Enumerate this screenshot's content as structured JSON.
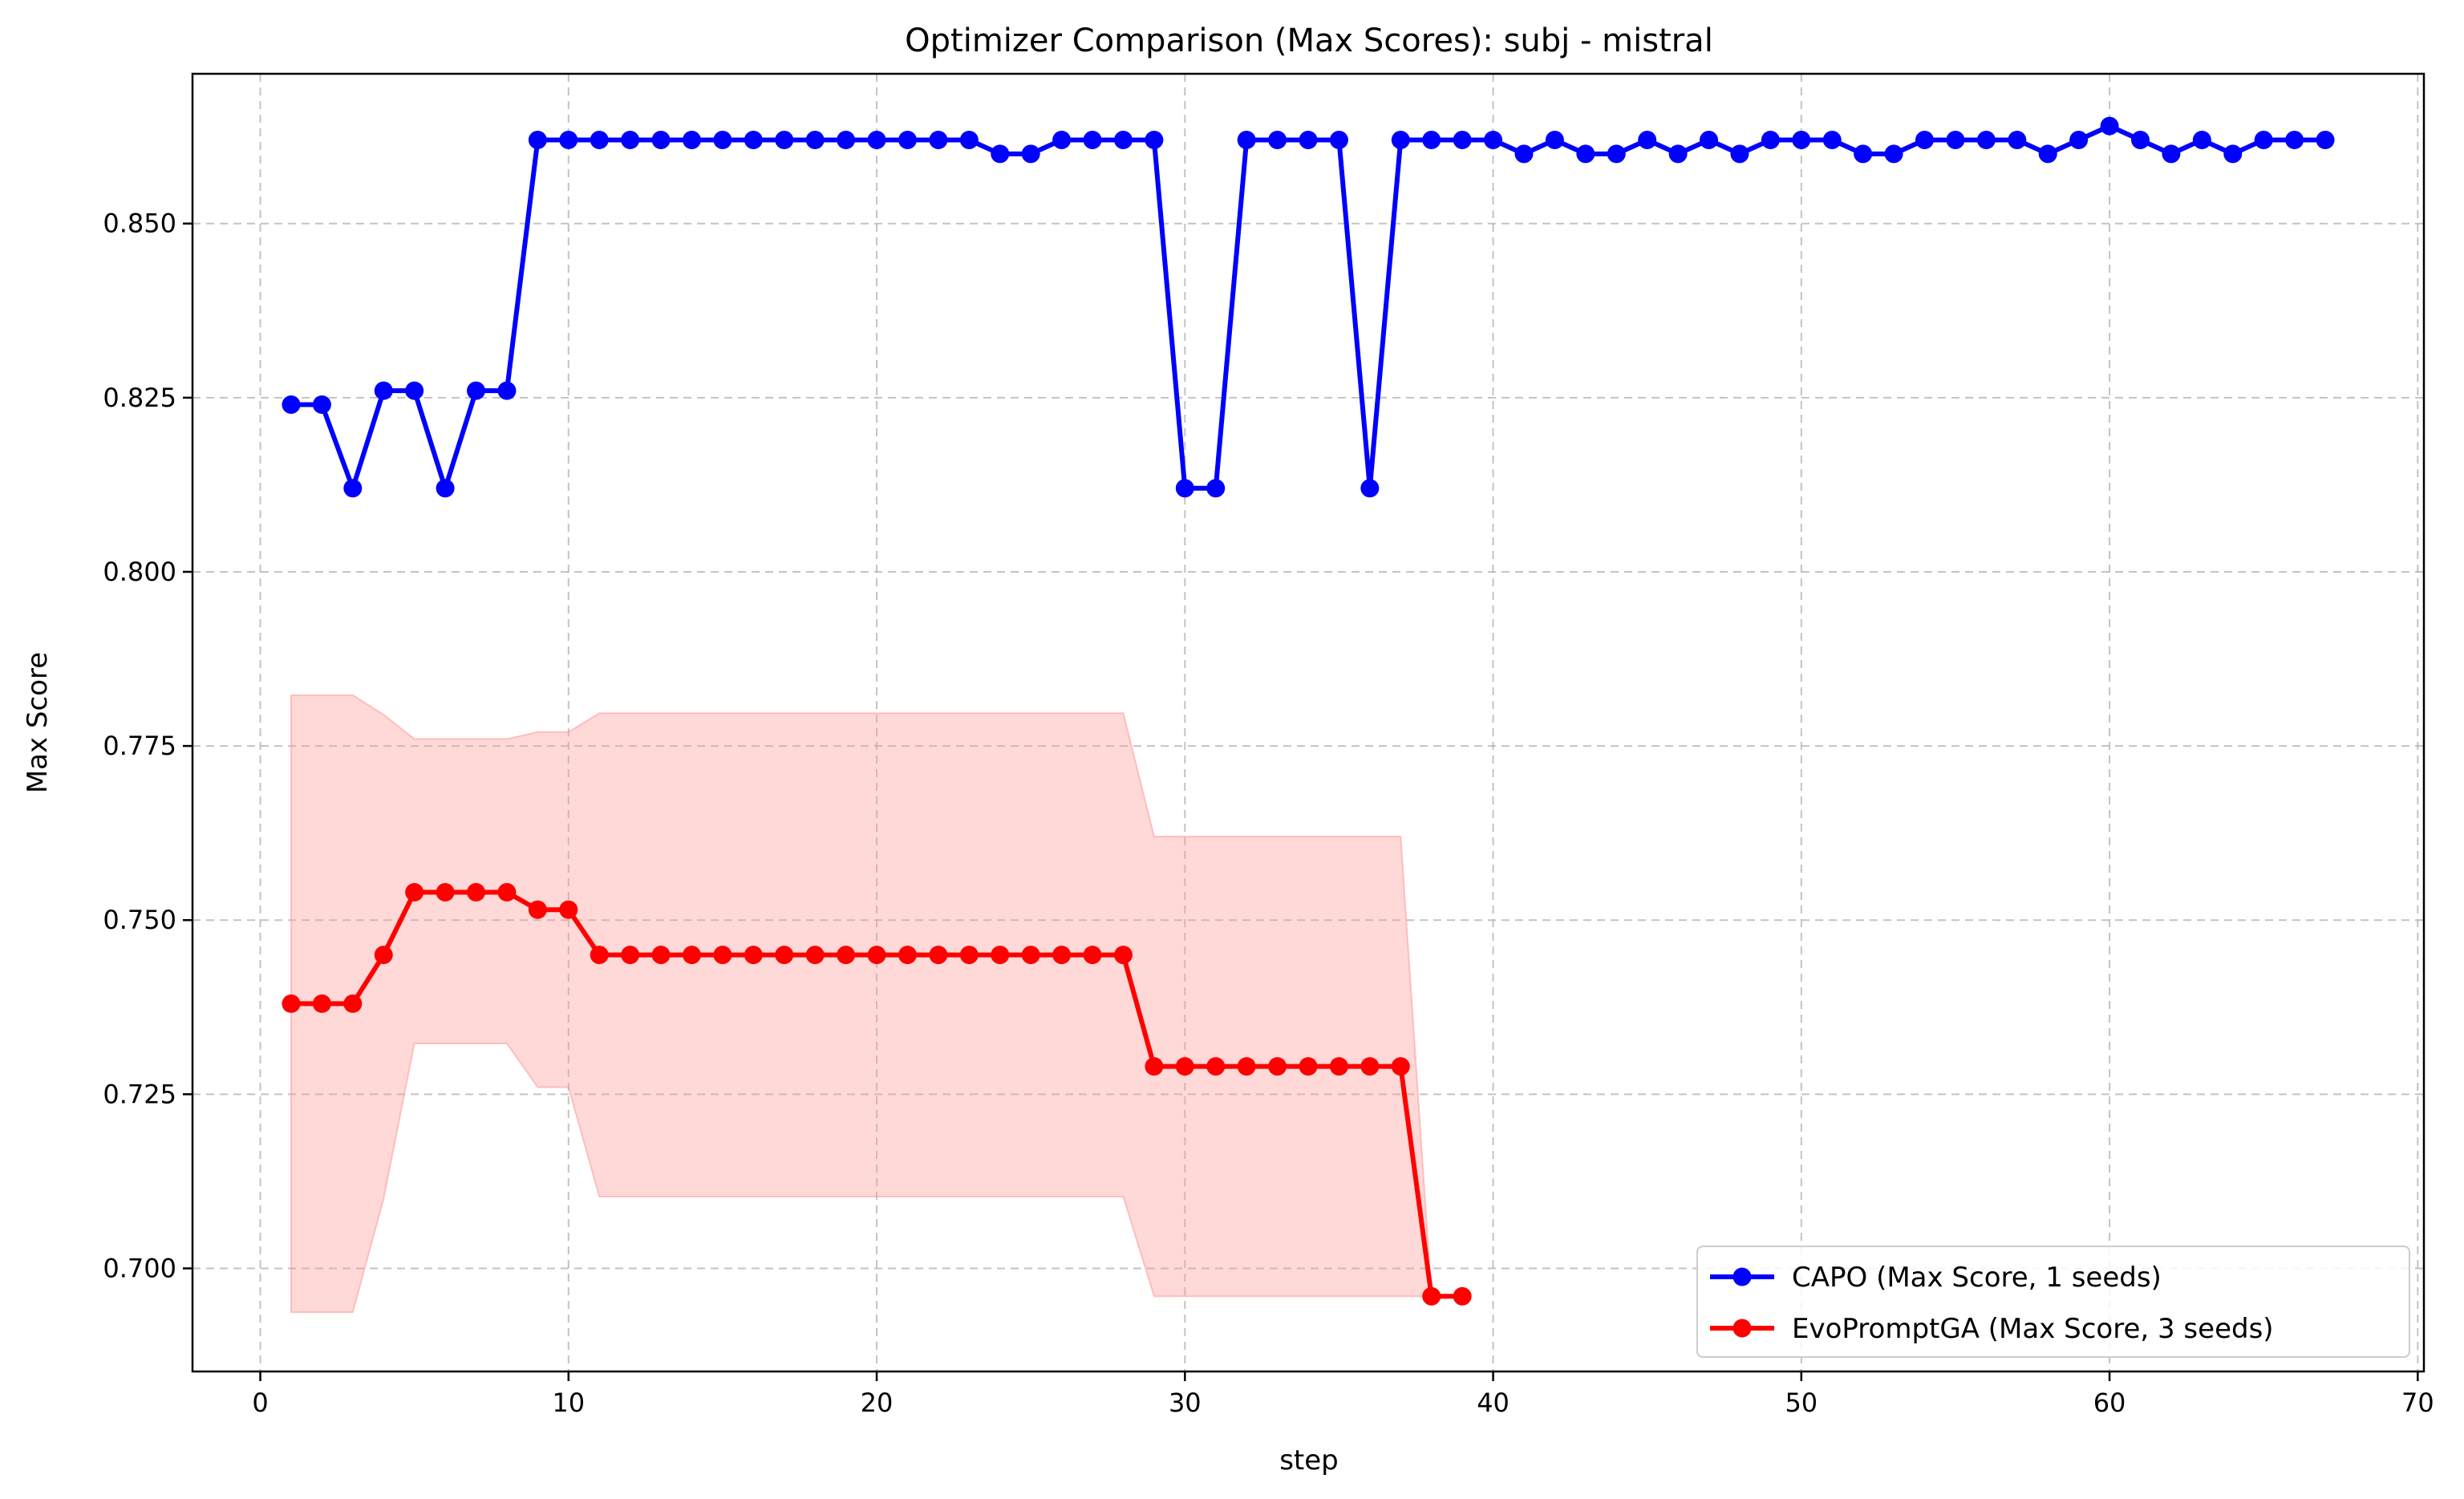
{
  "chart_data": {
    "type": "line",
    "title": "Optimizer Comparison (Max Scores): subj - mistral",
    "xlabel": "step",
    "ylabel": "Max Score",
    "xlim": [
      -2.2,
      70.2
    ],
    "ylim": [
      0.6852,
      0.8715
    ],
    "xticks": [
      0,
      10,
      20,
      30,
      40,
      50,
      60,
      70
    ],
    "yticks": [
      0.7,
      0.725,
      0.75,
      0.775,
      0.8,
      0.825,
      0.85
    ],
    "ytick_labels": [
      "0.700",
      "0.725",
      "0.750",
      "0.775",
      "0.800",
      "0.825",
      "0.850"
    ],
    "grid": true,
    "legend_position": "lower right",
    "series": [
      {
        "name": "CAPO (Max Score, 1 seeds)",
        "color": "#0000ff",
        "x": [
          1,
          2,
          3,
          4,
          5,
          6,
          7,
          8,
          9,
          10,
          11,
          12,
          13,
          14,
          15,
          16,
          17,
          18,
          19,
          20,
          21,
          22,
          23,
          24,
          25,
          26,
          27,
          28,
          29,
          30,
          31,
          32,
          33,
          34,
          35,
          36,
          37,
          38,
          39,
          40,
          41,
          42,
          43,
          44,
          45,
          46,
          47,
          48,
          49,
          50,
          51,
          52,
          53,
          54,
          55,
          56,
          57,
          58,
          59,
          60,
          61,
          62,
          63,
          64,
          65,
          66,
          67
        ],
        "y": [
          0.824,
          0.824,
          0.812,
          0.826,
          0.826,
          0.812,
          0.826,
          0.826,
          0.862,
          0.862,
          0.862,
          0.862,
          0.862,
          0.862,
          0.862,
          0.862,
          0.862,
          0.862,
          0.862,
          0.862,
          0.862,
          0.862,
          0.862,
          0.86,
          0.86,
          0.862,
          0.862,
          0.862,
          0.862,
          0.812,
          0.812,
          0.862,
          0.862,
          0.862,
          0.862,
          0.812,
          0.862,
          0.862,
          0.862,
          0.862,
          0.86,
          0.862,
          0.86,
          0.86,
          0.862,
          0.86,
          0.862,
          0.86,
          0.862,
          0.862,
          0.862,
          0.86,
          0.86,
          0.862,
          0.862,
          0.862,
          0.862,
          0.86,
          0.862,
          0.864,
          0.862,
          0.86,
          0.862,
          0.86,
          0.862,
          0.862,
          0.862
        ]
      },
      {
        "name": "EvoPromptGA (Max Score, 3 seeds)",
        "color": "#ff0000",
        "band_color": "#ff9999",
        "x": [
          1,
          2,
          3,
          4,
          5,
          6,
          7,
          8,
          9,
          10,
          11,
          12,
          13,
          14,
          15,
          16,
          17,
          18,
          19,
          20,
          21,
          22,
          23,
          24,
          25,
          26,
          27,
          28,
          29,
          30,
          31,
          32,
          33,
          34,
          35,
          36,
          37,
          38,
          39
        ],
        "y": [
          0.738,
          0.738,
          0.738,
          0.745,
          0.754,
          0.754,
          0.754,
          0.754,
          0.7515,
          0.7515,
          0.745,
          0.745,
          0.745,
          0.745,
          0.745,
          0.745,
          0.745,
          0.745,
          0.745,
          0.745,
          0.745,
          0.745,
          0.745,
          0.745,
          0.745,
          0.745,
          0.745,
          0.745,
          0.729,
          0.729,
          0.729,
          0.729,
          0.729,
          0.729,
          0.729,
          0.729,
          0.729,
          0.696,
          0.696
        ],
        "upper": [
          0.7823,
          0.7823,
          0.7823,
          0.7795,
          0.776,
          0.776,
          0.776,
          0.776,
          0.777,
          0.777,
          0.7797,
          0.7797,
          0.7797,
          0.7797,
          0.7797,
          0.7797,
          0.7797,
          0.7797,
          0.7797,
          0.7797,
          0.7797,
          0.7797,
          0.7797,
          0.7797,
          0.7797,
          0.7797,
          0.7797,
          0.7797,
          0.762,
          0.762,
          0.762,
          0.762,
          0.762,
          0.762,
          0.762,
          0.762,
          0.762,
          0.696,
          0.696
        ],
        "lower": [
          0.6937,
          0.6937,
          0.6937,
          0.71,
          0.7323,
          0.7323,
          0.7323,
          0.7323,
          0.726,
          0.726,
          0.7103,
          0.7103,
          0.7103,
          0.7103,
          0.7103,
          0.7103,
          0.7103,
          0.7103,
          0.7103,
          0.7103,
          0.7103,
          0.7103,
          0.7103,
          0.7103,
          0.7103,
          0.7103,
          0.7103,
          0.7103,
          0.696,
          0.696,
          0.696,
          0.696,
          0.696,
          0.696,
          0.696,
          0.696,
          0.696,
          0.696,
          0.696
        ]
      }
    ]
  }
}
